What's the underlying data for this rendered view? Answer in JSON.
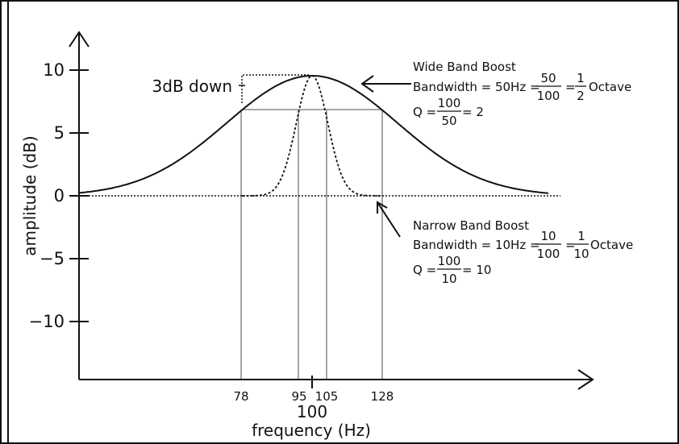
{
  "axes": {
    "y_label": "amplitude (dB)",
    "x_label": "frequency (Hz)",
    "y_ticks": [
      "10",
      "5",
      "0",
      "−5",
      "−10"
    ],
    "x_ticks": [
      "78",
      "95",
      "105",
      "128"
    ],
    "x_center": "100"
  },
  "annotations": {
    "three_db": "3dB down",
    "wide": {
      "title": "Wide Band Boost",
      "bw_prefix": "Bandwidth = 50Hz =",
      "bw_num": "50",
      "bw_den": "100",
      "eq": "=",
      "oct_num": "1",
      "oct_den": "2",
      "octave": "Octave",
      "q_prefix": "Q =",
      "q_num": "100",
      "q_den": "50",
      "q_result": "= 2"
    },
    "narrow": {
      "title": "Narrow Band Boost",
      "bw_prefix": "Bandwidth = 10Hz =",
      "bw_num": "10",
      "bw_den": "100",
      "eq": "=",
      "oct_num": "1",
      "oct_den": "10",
      "octave": "Octave",
      "q_prefix": "Q =",
      "q_num": "100",
      "q_den": "10",
      "q_result": "= 10"
    }
  },
  "colors": {
    "frame": "#111111",
    "curve": "#111111",
    "guide": "#a6a6a6"
  }
}
